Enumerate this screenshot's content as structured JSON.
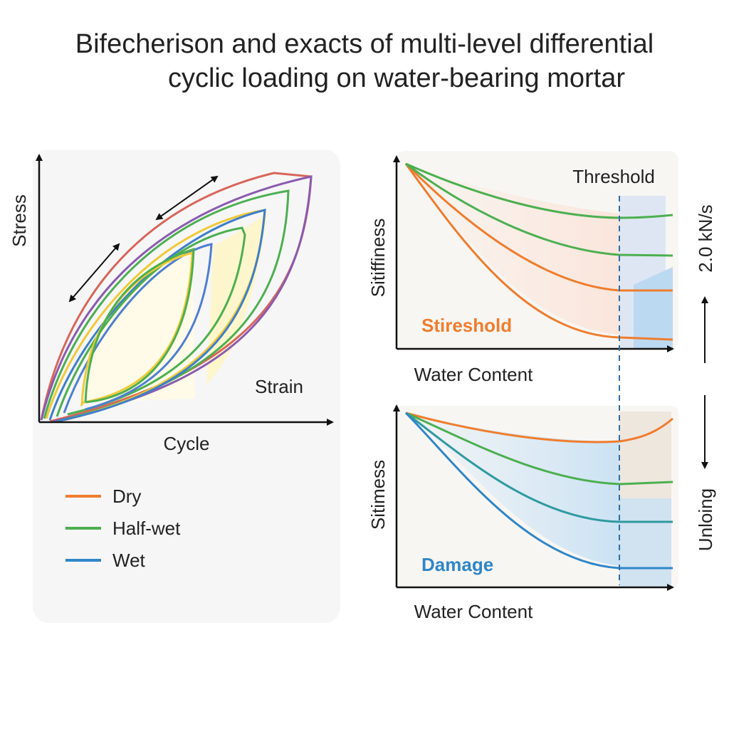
{
  "title": {
    "line1": "Bifecherison and exacts of multi-level differential",
    "line2": "cyclic loading on water-bearing mortar"
  },
  "left_panel": {
    "y_label": "Stress",
    "curve_label": "Strain",
    "x_label": "Cycle",
    "legend": [
      "Dry",
      "Half-wet",
      "Wet"
    ]
  },
  "top_right_panel": {
    "annotation": "Threshold",
    "y_label": "Sitiffiness",
    "curve_label": "Stireshold",
    "x_label": "Water Content"
  },
  "bottom_right_panel": {
    "y_label": "Sitimess",
    "curve_label": "Damage",
    "x_label": "Water Content"
  },
  "side_labels": {
    "rate": "2.0 kN/s",
    "mode": "Unloing"
  }
}
